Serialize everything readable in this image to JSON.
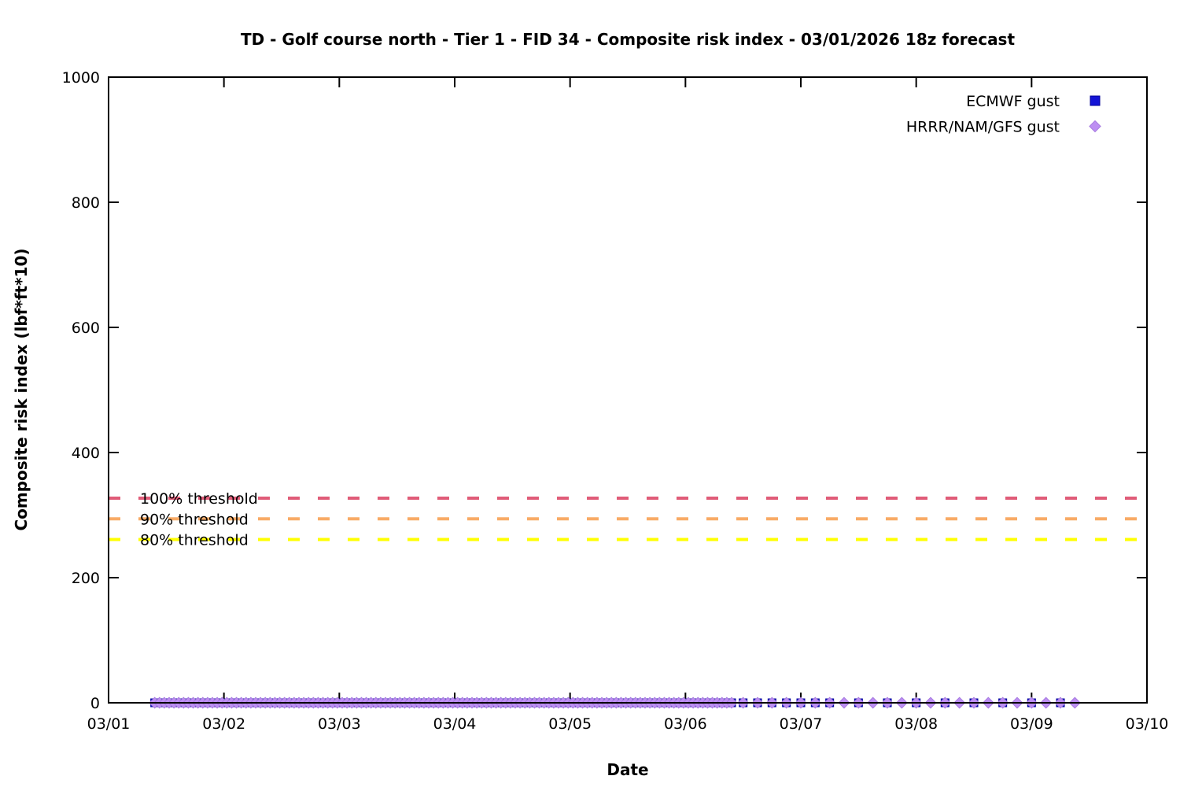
{
  "title": "TD - Golf course north - Tier 1 - FID 34 - Composite risk index - 03/01/2026 18z forecast",
  "x_axis": {
    "label": "Date",
    "tick_labels": [
      "03/01",
      "03/02",
      "03/03",
      "03/04",
      "03/05",
      "03/06",
      "03/07",
      "03/08",
      "03/09",
      "03/10"
    ]
  },
  "y_axis": {
    "label": "Composite risk index (lbf*ft*10)",
    "tick_labels": [
      "0",
      "200",
      "400",
      "600",
      "800",
      "1000"
    ],
    "min": 0,
    "max": 1000
  },
  "legend": {
    "items": [
      {
        "label": "ECMWF gust",
        "marker": "square-icon",
        "color": "#1414d6"
      },
      {
        "label": "HRRR/NAM/GFS gust",
        "marker": "diamond-icon",
        "color": "#bd8ff2"
      }
    ]
  },
  "thresholds": [
    {
      "label": "100% threshold",
      "value": 327,
      "color": "#e05c78"
    },
    {
      "label": "90% threshold",
      "value": 294,
      "color": "#f8ab66"
    },
    {
      "label": "80% threshold",
      "value": 261,
      "color": "#ffff00"
    }
  ],
  "chart_data": {
    "type": "scatter",
    "title": "TD - Golf course north - Tier 1 - FID 34 - Composite risk index - 03/01/2026 18z forecast",
    "xlabel": "Date",
    "ylabel": "Composite risk index (lbf*ft*10)",
    "x_tick_labels": [
      "03/01",
      "03/02",
      "03/03",
      "03/04",
      "03/05",
      "03/06",
      "03/07",
      "03/08",
      "03/09",
      "03/10"
    ],
    "x_unit": "days after 03/01/2026 00z",
    "xlim_days": [
      0,
      9
    ],
    "ylim": [
      0,
      1000
    ],
    "grid": false,
    "legend_position": "top-right",
    "series": [
      {
        "name": "ECMWF gust",
        "marker": "square",
        "color": "#1414d6",
        "edge_color": "#000099",
        "all_values_y": 0,
        "segments": [
          {
            "start_day": 0.4,
            "end_day": 5.42,
            "step_hours": 1
          },
          {
            "start_day": 5.5,
            "end_day": 6.25,
            "step_hours": 3
          },
          {
            "start_day": 6.5,
            "end_day": 8.25,
            "step_hours": 6
          }
        ]
      },
      {
        "name": "HRRR/NAM/GFS gust",
        "marker": "diamond",
        "color": "#bd8ff2",
        "edge_color": "#a679e0",
        "all_values_y": 0,
        "segments": [
          {
            "start_day": 0.4,
            "end_day": 5.42,
            "step_hours": 1
          },
          {
            "start_day": 5.5,
            "end_day": 8.42,
            "step_hours": 3
          }
        ]
      }
    ],
    "threshold_lines": [
      {
        "label": "100% threshold",
        "y": 327,
        "color": "#e05c78",
        "style": "dashed"
      },
      {
        "label": "90% threshold",
        "y": 294,
        "color": "#f8ab66",
        "style": "dashed"
      },
      {
        "label": "80% threshold",
        "y": 261,
        "color": "#ffff00",
        "style": "dashed"
      }
    ]
  }
}
